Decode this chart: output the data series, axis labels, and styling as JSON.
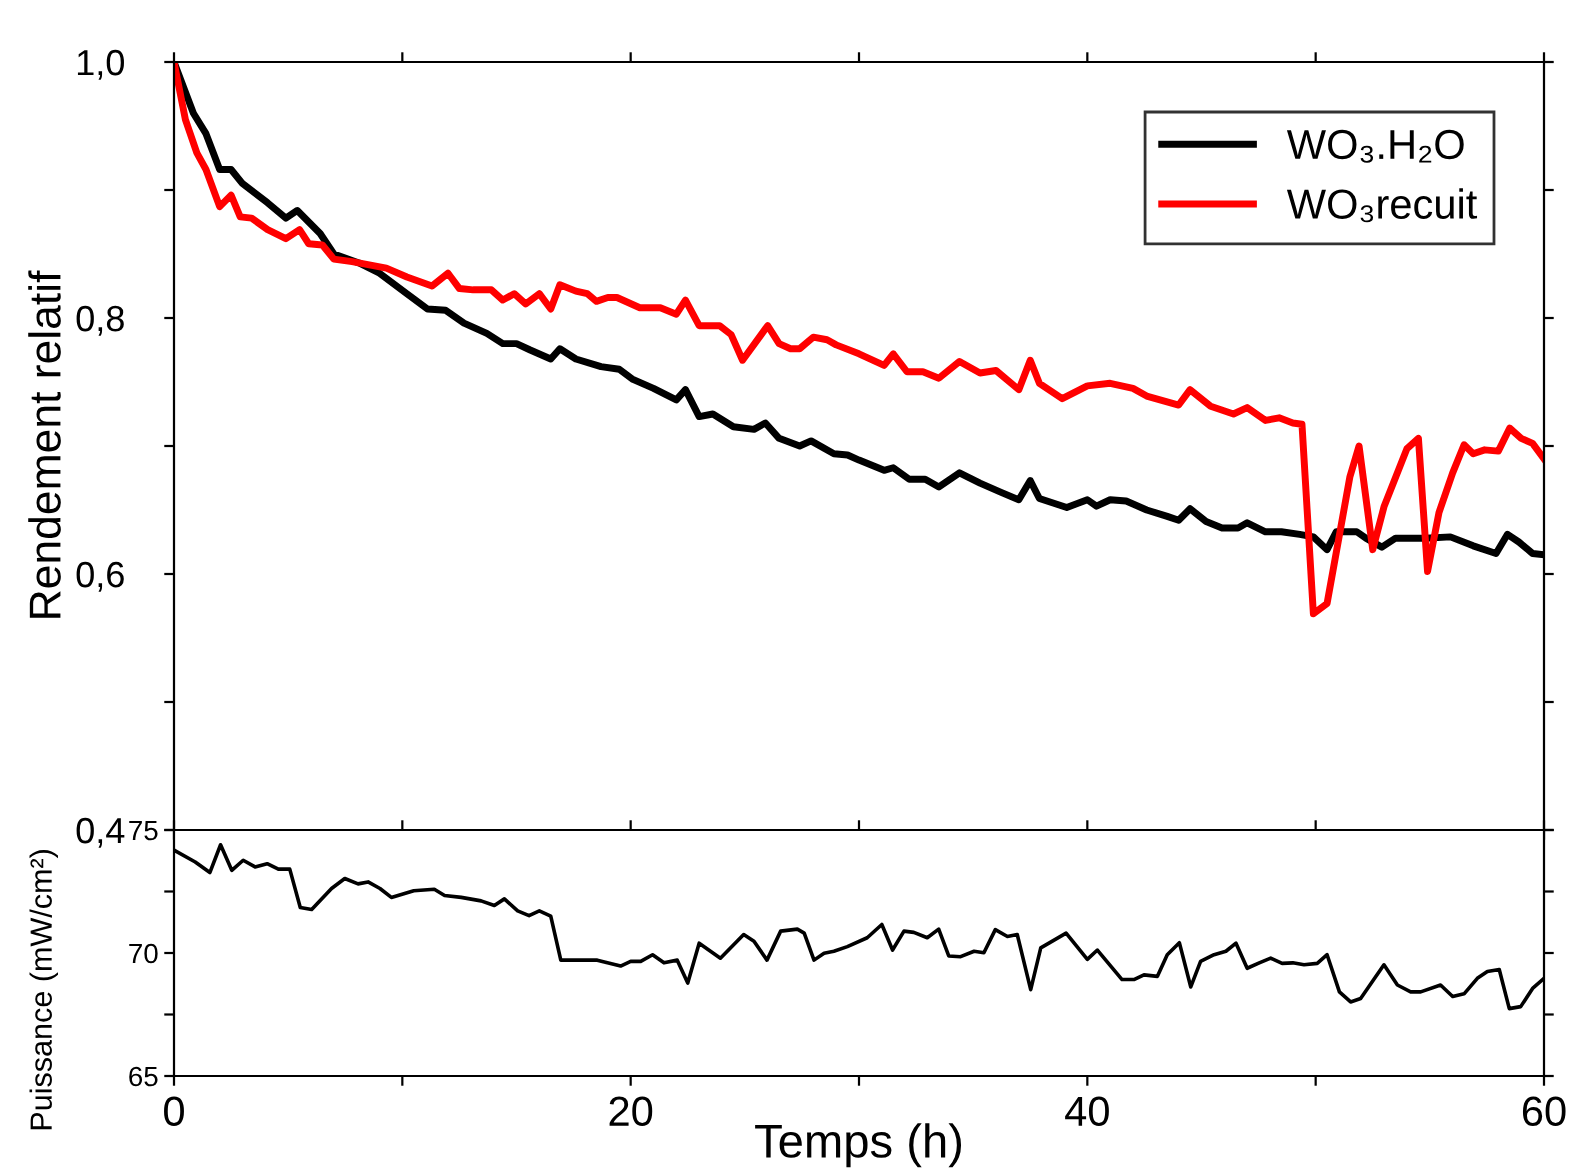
{
  "chart_data": [
    {
      "type": "line",
      "ylabel": "Rendement relatif",
      "xlim": [
        0,
        60
      ],
      "ylim": [
        0.4,
        1.0
      ],
      "xticks": [
        {
          "value": 0,
          "label": null
        },
        {
          "value": 10,
          "label": null
        },
        {
          "value": 20,
          "label": null
        },
        {
          "value": 30,
          "label": null
        },
        {
          "value": 40,
          "label": null
        },
        {
          "value": 50,
          "label": null
        },
        {
          "value": 60,
          "label": null
        }
      ],
      "yticks": [
        {
          "value": 0.4,
          "label": "0,4"
        },
        {
          "value": 0.5,
          "label": null
        },
        {
          "value": 0.6,
          "label": "0,6"
        },
        {
          "value": 0.7,
          "label": null
        },
        {
          "value": 0.8,
          "label": "0,8"
        },
        {
          "value": 0.9,
          "label": null
        },
        {
          "value": 1.0,
          "label": "1,0"
        }
      ],
      "tick_labels": "y",
      "legend": "top right",
      "grid": false,
      "marker": "none",
      "line_style": "solid",
      "series": [
        {
          "name": "WO₃.H₂O",
          "color": "#000000",
          "x": [
            0,
            0.85,
            1.4,
            2.0,
            2.5,
            3.0,
            4.1,
            4.9,
            5.4,
            6.4,
            7.0,
            8.1,
            9.0,
            10.2,
            11.1,
            11.9,
            12.7,
            13.7,
            14.4,
            15.0,
            15.6,
            16.5,
            16.9,
            17.6,
            18.7,
            19.5,
            20.1,
            21.0,
            22.0,
            22.4,
            23.0,
            23.6,
            24.5,
            25.4,
            25.9,
            26.5,
            27.4,
            27.9,
            28.9,
            29.5,
            30.0,
            31.1,
            31.5,
            32.2,
            32.9,
            33.5,
            34.4,
            35.3,
            36.2,
            37.0,
            37.5,
            37.9,
            39.1,
            40.0,
            40.4,
            41.0,
            41.7,
            42.6,
            43.5,
            44.0,
            44.5,
            45.2,
            45.9,
            46.6,
            47.0,
            47.8,
            48.5,
            49.3,
            49.9,
            50.5,
            50.9,
            51.8,
            52.2,
            52.9,
            53.5,
            54.8,
            55.9,
            56.9,
            57.9,
            58.4,
            58.9,
            59.5,
            60
          ],
          "values": [
            1.0,
            0.96,
            0.944,
            0.916,
            0.916,
            0.905,
            0.89,
            0.878,
            0.884,
            0.866,
            0.85,
            0.843,
            0.835,
            0.819,
            0.807,
            0.806,
            0.796,
            0.788,
            0.78,
            0.78,
            0.775,
            0.768,
            0.776,
            0.768,
            0.762,
            0.76,
            0.752,
            0.745,
            0.736,
            0.744,
            0.723,
            0.725,
            0.715,
            0.713,
            0.718,
            0.706,
            0.7,
            0.704,
            0.694,
            0.693,
            0.689,
            0.681,
            0.683,
            0.674,
            0.674,
            0.668,
            0.679,
            0.671,
            0.664,
            0.658,
            0.673,
            0.659,
            0.652,
            0.658,
            0.653,
            0.658,
            0.657,
            0.65,
            0.645,
            0.642,
            0.651,
            0.641,
            0.636,
            0.636,
            0.64,
            0.633,
            0.633,
            0.631,
            0.629,
            0.619,
            0.633,
            0.633,
            0.628,
            0.621,
            0.628,
            0.628,
            0.629,
            0.622,
            0.616,
            0.631,
            0.625,
            0.616,
            0.615
          ]
        },
        {
          "name": "WO₃recuit",
          "color": "#ff0000",
          "x": [
            0,
            0.5,
            1.0,
            1.4,
            2.0,
            2.5,
            2.9,
            3.4,
            4.1,
            4.9,
            5.5,
            5.9,
            6.5,
            7.0,
            7.8,
            9.3,
            10.2,
            11.3,
            12.0,
            12.5,
            13.1,
            13.9,
            14.4,
            14.9,
            15.4,
            16.0,
            16.5,
            16.9,
            17.6,
            18.1,
            18.5,
            19.0,
            19.4,
            20.4,
            21.3,
            22.0,
            22.4,
            23.0,
            23.9,
            24.4,
            24.9,
            26.0,
            26.5,
            27.0,
            27.4,
            28.0,
            28.6,
            29.0,
            30.0,
            31.1,
            31.5,
            32.1,
            32.8,
            33.5,
            34.4,
            35.3,
            36.0,
            37.0,
            37.5,
            37.9,
            38.9,
            40.0,
            41.0,
            42.0,
            42.6,
            44.0,
            44.5,
            45.4,
            46.4,
            47.0,
            47.8,
            48.4,
            49.0,
            49.4,
            49.9,
            50.5,
            51.5,
            51.9,
            52.5,
            53.0,
            54.0,
            54.5,
            54.9,
            55.4,
            56.0,
            56.5,
            56.9,
            57.4,
            58.0,
            58.5,
            59.0,
            59.5,
            60
          ],
          "values": [
            1.0,
            0.955,
            0.929,
            0.916,
            0.887,
            0.896,
            0.879,
            0.878,
            0.869,
            0.862,
            0.869,
            0.858,
            0.857,
            0.846,
            0.844,
            0.839,
            0.832,
            0.825,
            0.835,
            0.823,
            0.822,
            0.822,
            0.814,
            0.819,
            0.811,
            0.819,
            0.807,
            0.826,
            0.821,
            0.819,
            0.813,
            0.816,
            0.816,
            0.808,
            0.808,
            0.803,
            0.814,
            0.794,
            0.794,
            0.787,
            0.767,
            0.794,
            0.78,
            0.776,
            0.776,
            0.785,
            0.783,
            0.779,
            0.772,
            0.763,
            0.772,
            0.758,
            0.758,
            0.753,
            0.766,
            0.757,
            0.759,
            0.744,
            0.767,
            0.749,
            0.737,
            0.747,
            0.749,
            0.745,
            0.739,
            0.732,
            0.744,
            0.731,
            0.725,
            0.73,
            0.72,
            0.722,
            0.718,
            0.717,
            0.569,
            0.577,
            0.676,
            0.7,
            0.619,
            0.653,
            0.698,
            0.706,
            0.602,
            0.648,
            0.679,
            0.701,
            0.694,
            0.697,
            0.696,
            0.714,
            0.706,
            0.702,
            0.69
          ]
        }
      ]
    },
    {
      "type": "line",
      "xlabel": "Temps (h)",
      "ylabel": "Puissance (mW/cm²)",
      "xlim": [
        0,
        60
      ],
      "ylim": [
        65,
        75
      ],
      "xticks": [
        0,
        {
          "value": 10,
          "label": null
        },
        20,
        {
          "value": 30,
          "label": null
        },
        40,
        {
          "value": 50,
          "label": null
        },
        60
      ],
      "yticks": [
        65,
        {
          "value": 67.5,
          "label": null
        },
        70,
        {
          "value": 72.5,
          "label": null
        },
        75
      ],
      "grid": false,
      "marker": "none",
      "line_style": "solid",
      "series": [
        {
          "color": "#000000",
          "x": [
            0,
            0.93,
            1.57,
            2.04,
            2.53,
            3.03,
            3.55,
            4.08,
            4.57,
            5.07,
            5.53,
            6.03,
            6.9,
            7.48,
            8.06,
            8.5,
            9.02,
            9.52,
            10.5,
            11.4,
            11.85,
            12.58,
            13.45,
            14.03,
            14.47,
            15.05,
            15.55,
            16.0,
            16.5,
            16.94,
            17.8,
            18.54,
            19.56,
            20.0,
            20.44,
            20.96,
            21.46,
            22.04,
            22.5,
            23.0,
            23.93,
            24.95,
            25.4,
            25.97,
            26.57,
            27.3,
            27.6,
            28.03,
            28.47,
            28.9,
            29.49,
            30.36,
            31.0,
            31.47,
            31.97,
            32.4,
            32.99,
            33.49,
            33.93,
            34.45,
            35.04,
            35.47,
            35.97,
            36.5,
            36.93,
            37.52,
            37.96,
            39.07,
            40.0,
            40.44,
            41.52,
            42.04,
            42.48,
            43.07,
            43.5,
            44.03,
            44.53,
            44.96,
            45.55,
            46.07,
            46.51,
            47.0,
            47.53,
            48.03,
            48.53,
            49.0,
            49.49,
            50.07,
            50.5,
            51.04,
            51.53,
            51.97,
            52.99,
            53.58,
            54.16,
            54.6,
            55.47,
            56.0,
            56.5,
            57.08,
            57.52,
            58.04,
            58.48,
            58.98,
            59.5,
            60
          ],
          "values": [
            74.18,
            73.7,
            73.27,
            74.4,
            73.36,
            73.77,
            73.5,
            73.63,
            73.41,
            73.41,
            71.85,
            71.77,
            72.62,
            73.03,
            72.81,
            72.89,
            72.62,
            72.26,
            72.53,
            72.59,
            72.34,
            72.26,
            72.12,
            71.93,
            72.2,
            71.71,
            71.52,
            71.71,
            71.5,
            69.71,
            69.71,
            69.71,
            69.47,
            69.66,
            69.66,
            69.93,
            69.6,
            69.71,
            68.78,
            70.4,
            69.79,
            70.75,
            70.48,
            69.71,
            70.89,
            70.97,
            70.81,
            69.71,
            69.99,
            70.07,
            70.26,
            70.62,
            71.16,
            70.12,
            70.89,
            70.84,
            70.62,
            70.97,
            69.88,
            69.85,
            70.07,
            70.01,
            70.95,
            70.67,
            70.75,
            68.51,
            70.21,
            70.81,
            69.74,
            70.12,
            68.92,
            68.92,
            69.11,
            69.05,
            69.93,
            70.42,
            68.62,
            69.66,
            69.93,
            70.07,
            70.4,
            69.38,
            69.6,
            69.79,
            69.58,
            69.6,
            69.52,
            69.58,
            69.93,
            68.42,
            68.01,
            68.15,
            69.52,
            68.7,
            68.42,
            68.42,
            68.7,
            68.23,
            68.34,
            68.97,
            69.25,
            69.33,
            67.74,
            67.82,
            68.56,
            68.97
          ]
        }
      ]
    }
  ]
}
